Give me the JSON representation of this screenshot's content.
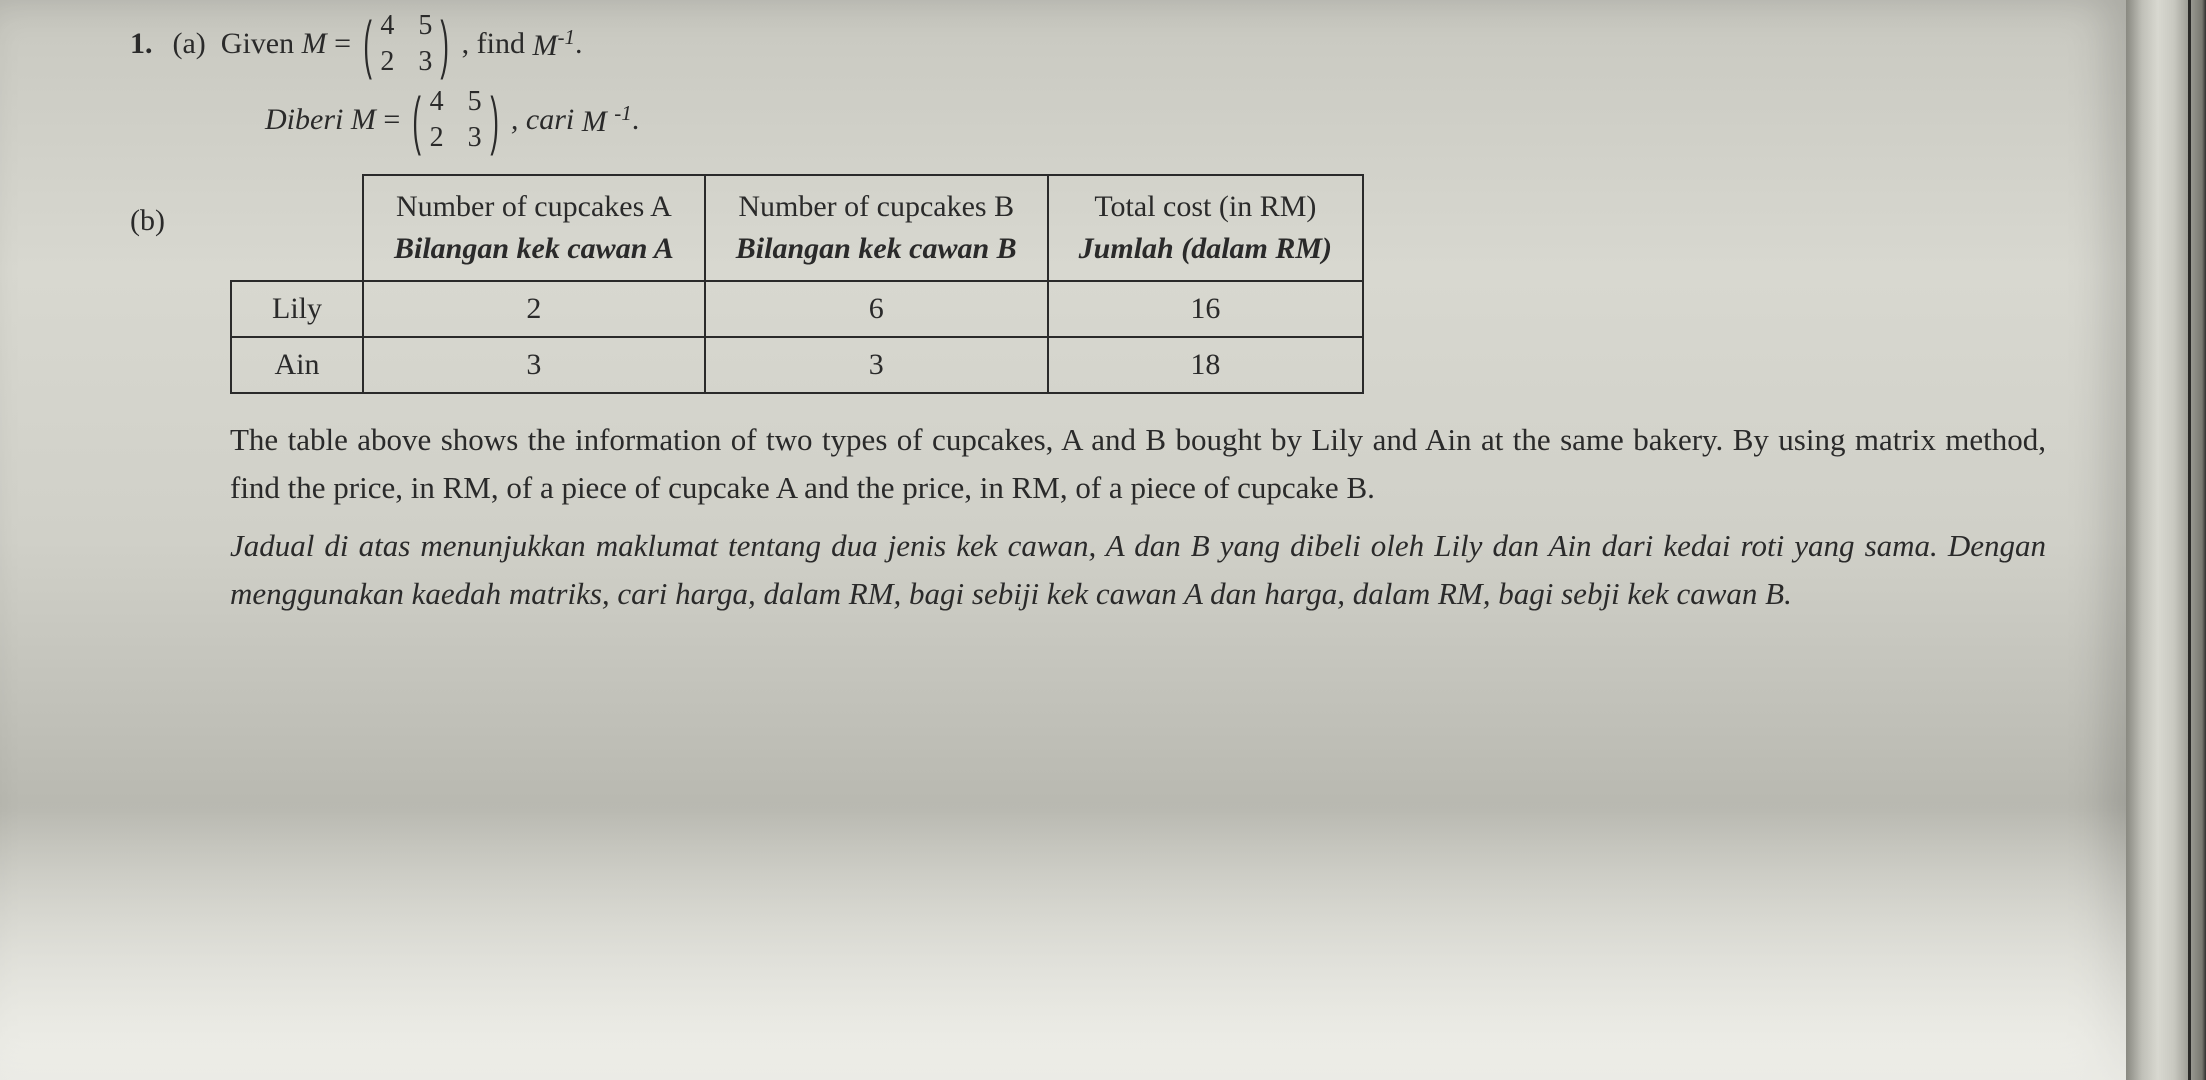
{
  "question": {
    "number": "1.",
    "part_a": "(a)",
    "part_b": "(b)",
    "given_en": "Given",
    "given_my": "Diberi",
    "var_M": "M",
    "equals": "=",
    "find_en": ", find",
    "find_my": ", cari",
    "inverse": "M",
    "inverse_sup": "-1",
    "period": ".",
    "matrix": {
      "a11": "4",
      "a12": "5",
      "a21": "2",
      "a22": "3"
    }
  },
  "table": {
    "headers": {
      "col1_en": "Number of cupcakes A",
      "col1_my": "Bilangan kek cawan A",
      "col2_en": "Number of cupcakes B",
      "col2_my": "Bilangan kek cawan B",
      "col3_en": "Total cost (in RM)",
      "col3_my": "Jumlah (dalam RM)"
    },
    "rows": [
      {
        "name": "Lily",
        "a": "2",
        "b": "6",
        "total": "16"
      },
      {
        "name": "Ain",
        "a": "3",
        "b": "3",
        "total": "18"
      }
    ]
  },
  "paragraph": {
    "en": "The table above shows the information of two types of cupcakes, A and B bought by Lily and Ain at the same bakery. By using matrix method, find the price, in RM, of a piece of cupcake A and the price, in RM, of a piece of cupcake B.",
    "my": "Jadual di atas menunjukkan maklumat tentang dua jenis kek cawan, A dan B yang dibeli oleh Lily dan Ain dari kedai roti yang sama. Dengan menggunakan kaedah matriks, cari harga, dalam RM, bagi sebiji kek cawan A dan harga, dalam RM, bagi sebji kek cawan B."
  },
  "colors": {
    "text": "#2a2a2a",
    "border": "#2a2a2a",
    "page_bg": "#d0d0c8"
  }
}
